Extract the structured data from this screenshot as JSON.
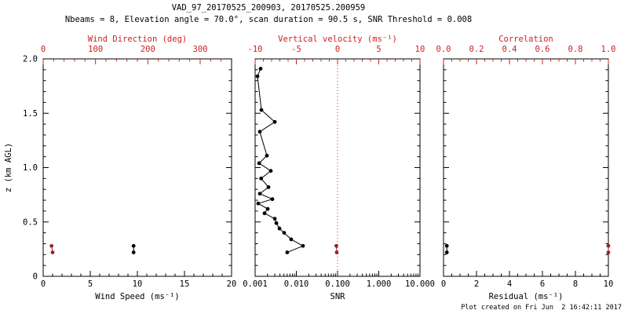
{
  "header": {
    "title": "VAD_97_20170525_200903, 20170525.200959",
    "subtitle": "Nbeams = 8, Elevation angle = 70.0°, scan duration = 90.5 s, SNR Threshold = 0.008"
  },
  "footer": {
    "created": "Plot created on Fri Jun  2 16:42:11 2017"
  },
  "colors": {
    "axis_black": "#000000",
    "axis_red": "#cc2222",
    "marker_black": "#000000",
    "marker_red": "#992222"
  },
  "chart_data": [
    {
      "id": "wind",
      "type": "scatter",
      "x_bottom": {
        "label": "Wind Speed (ms⁻¹)",
        "scale": "linear",
        "range": [
          0,
          20
        ],
        "ticks": [
          0,
          5,
          10,
          15,
          20
        ],
        "tick_labels": [
          "0",
          "5",
          "10",
          "15",
          "20"
        ],
        "minor_step": 1
      },
      "x_top": {
        "label": "Wind Direction (deg)",
        "scale": "linear",
        "range": [
          0,
          360
        ],
        "ticks": [
          0,
          100,
          200,
          300
        ],
        "tick_labels": [
          "0",
          "100",
          "200",
          "300"
        ],
        "minor_step": 20
      },
      "y": {
        "label": "z (km AGL)",
        "range": [
          0,
          2
        ],
        "ticks": [
          0,
          0.5,
          1,
          1.5,
          2
        ],
        "tick_labels": [
          "0",
          "0.5",
          "1.0",
          "1.5",
          "2.0"
        ],
        "minor_step": 0.1,
        "show_labels": true
      },
      "series": [
        {
          "name": "wind-speed",
          "axis": "bottom",
          "color": "black",
          "connect": true,
          "points": [
            [
              9.6,
              0.28
            ],
            [
              9.6,
              0.22
            ]
          ]
        },
        {
          "name": "wind-direction",
          "axis": "top",
          "color": "red",
          "connect": true,
          "points": [
            [
              16,
              0.28
            ],
            [
              18,
              0.22
            ]
          ]
        }
      ]
    },
    {
      "id": "snr",
      "type": "scatter",
      "x_bottom": {
        "label": "SNR",
        "scale": "log",
        "range": [
          0.001,
          10
        ],
        "ticks": [
          0.001,
          0.01,
          0.1,
          1,
          10
        ],
        "tick_labels": [
          "0.001",
          "0.010",
          "0.100",
          "1.000",
          "10.000"
        ]
      },
      "x_top": {
        "label": "Vertical velocity (ms⁻¹)",
        "scale": "linear",
        "range": [
          -10,
          10
        ],
        "ticks": [
          -10,
          -5,
          0,
          5,
          10
        ],
        "tick_labels": [
          "-10",
          "-5",
          "0",
          "5",
          "10"
        ],
        "minor_step": 1
      },
      "y": {
        "range": [
          0,
          2
        ],
        "ticks": [
          0,
          0.5,
          1,
          1.5,
          2
        ],
        "tick_labels": [
          "",
          "",
          "",
          "",
          ""
        ],
        "minor_step": 0.1,
        "show_labels": false
      },
      "ref_line": {
        "axis": "top",
        "value": 0,
        "color": "red",
        "dash": "dotted"
      },
      "series": [
        {
          "name": "snr-profile",
          "axis": "bottom",
          "color": "black",
          "connect": true,
          "points": [
            [
              0.00136,
              1.91
            ],
            [
              0.00114,
              1.84
            ],
            [
              0.00142,
              1.53
            ],
            [
              0.003,
              1.42
            ],
            [
              0.0013,
              1.33
            ],
            [
              0.00193,
              1.11
            ],
            [
              0.00125,
              1.04
            ],
            [
              0.0024,
              0.97
            ],
            [
              0.0014,
              0.9
            ],
            [
              0.00211,
              0.82
            ],
            [
              0.0013,
              0.76
            ],
            [
              0.00262,
              0.71
            ],
            [
              0.00119,
              0.67
            ],
            [
              0.00202,
              0.62
            ],
            [
              0.00169,
              0.58
            ],
            [
              0.003,
              0.53
            ],
            [
              0.00327,
              0.49
            ],
            [
              0.00389,
              0.44
            ],
            [
              0.00506,
              0.4
            ],
            [
              0.0075,
              0.34
            ],
            [
              0.0145,
              0.28
            ],
            [
              0.006,
              0.22
            ]
          ]
        },
        {
          "name": "vertical-velocity",
          "axis": "top",
          "color": "red",
          "connect": true,
          "points": [
            [
              -0.15,
              0.28
            ],
            [
              -0.1,
              0.22
            ]
          ]
        }
      ]
    },
    {
      "id": "residual",
      "type": "scatter",
      "x_bottom": {
        "label": "Residual (ms⁻¹)",
        "scale": "linear",
        "range": [
          0,
          10
        ],
        "ticks": [
          0,
          2,
          4,
          6,
          8,
          10
        ],
        "tick_labels": [
          "0",
          "2",
          "4",
          "6",
          "8",
          "10"
        ],
        "minor_step": 0.5
      },
      "x_top": {
        "label": "Correlation",
        "scale": "linear",
        "range": [
          0,
          1
        ],
        "ticks": [
          0,
          0.2,
          0.4,
          0.6,
          0.8,
          1.0
        ],
        "tick_labels": [
          "0.0",
          "0.2",
          "0.4",
          "0.6",
          "0.8",
          "1.0"
        ],
        "minor_step": 0.05
      },
      "y": {
        "range": [
          0,
          2
        ],
        "ticks": [
          0,
          0.5,
          1,
          1.5,
          2
        ],
        "tick_labels": [
          "",
          "",
          "",
          "",
          ""
        ],
        "minor_step": 0.1,
        "show_labels": false
      },
      "series": [
        {
          "name": "residual",
          "axis": "bottom",
          "color": "black",
          "connect": true,
          "points": [
            [
              0.2,
              0.28
            ],
            [
              0.2,
              0.22
            ]
          ]
        },
        {
          "name": "correlation",
          "axis": "top",
          "color": "red",
          "connect": true,
          "points": [
            [
              1.0,
              0.28
            ],
            [
              1.0,
              0.22
            ]
          ]
        }
      ]
    }
  ]
}
